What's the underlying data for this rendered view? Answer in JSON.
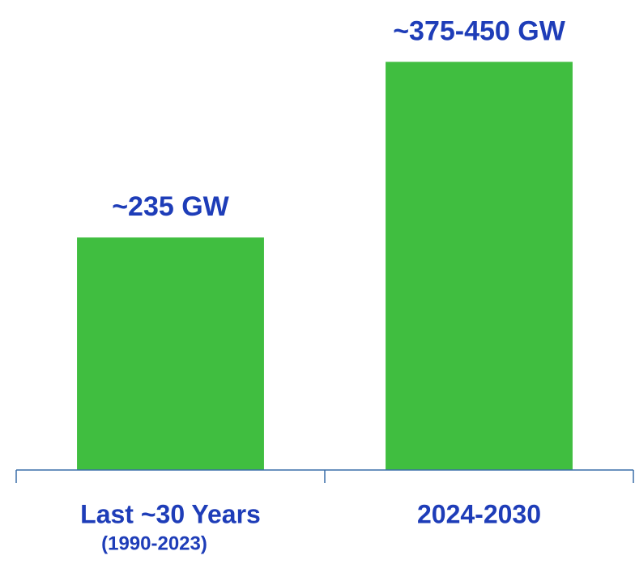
{
  "chart_data": {
    "type": "bar",
    "categories": [
      "Last ~30 Years",
      "2024-2030"
    ],
    "category_sublabels": [
      "(1990-2023)",
      null
    ],
    "values": [
      235,
      412.5
    ],
    "value_labels": [
      "~235 GW",
      "~375-450 GW"
    ],
    "color": "#40be40",
    "ylim": [
      0,
      475
    ]
  }
}
